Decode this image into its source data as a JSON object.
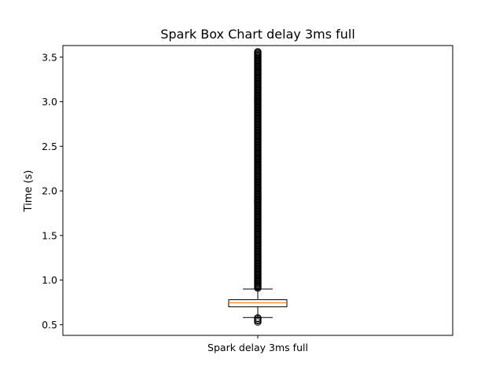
{
  "chart_data": {
    "type": "box",
    "title": "Spark Box Chart delay 3ms full",
    "xlabel": "",
    "ylabel": "Time (s)",
    "categories": [
      "Spark delay 3ms full"
    ],
    "ylim": [
      0.38,
      3.63
    ],
    "yticks": [
      "0.5",
      "1.0",
      "1.5",
      "2.0",
      "2.5",
      "3.0",
      "3.5"
    ],
    "grid": false,
    "boxes": [
      {
        "name": "Spark delay 3ms full",
        "whisker_low": 0.58,
        "q1": 0.7,
        "median": 0.745,
        "q3": 0.78,
        "whisker_high": 0.9,
        "outliers_low": [
          0.53,
          0.545,
          0.555,
          0.57,
          0.575
        ],
        "outliers_high_range": [
          0.91,
          3.56
        ]
      }
    ],
    "colors": {
      "box": "#000000",
      "median": "#ff7f0e",
      "flier": "#000000"
    }
  }
}
